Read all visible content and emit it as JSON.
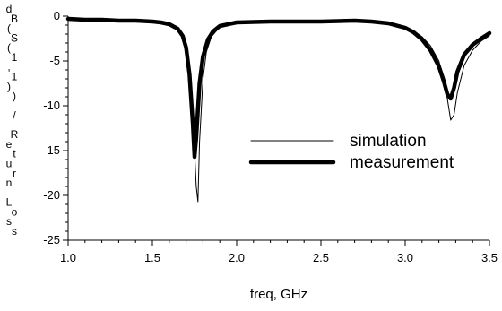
{
  "chart_data": {
    "type": "line",
    "title": "",
    "xlabel": "freq, GHz",
    "ylabel": "dB(S(1,1)) / Return Loss",
    "xlim": [
      1.0,
      3.5
    ],
    "ylim": [
      -25,
      0
    ],
    "xticks": [
      1.0,
      1.5,
      2.0,
      2.5,
      3.0,
      3.5
    ],
    "xtick_labels": [
      "1.0",
      "1.5",
      "2.0",
      "2.5",
      "3.0",
      "3.5"
    ],
    "yticks": [
      0,
      -5,
      -10,
      -15,
      -20,
      -25
    ],
    "ytick_labels": [
      "0",
      "-5",
      "-10",
      "-15",
      "-20",
      "-25"
    ],
    "grid": false,
    "legend_position": "center-right",
    "series": [
      {
        "name": "simulation",
        "line_width": "thin",
        "color": "#000000",
        "x": [
          1.0,
          1.1,
          1.2,
          1.3,
          1.4,
          1.5,
          1.55,
          1.6,
          1.65,
          1.68,
          1.7,
          1.72,
          1.74,
          1.76,
          1.77,
          1.78,
          1.8,
          1.82,
          1.85,
          1.9,
          2.0,
          2.2,
          2.5,
          2.7,
          2.8,
          2.9,
          3.0,
          3.05,
          3.1,
          3.15,
          3.2,
          3.23,
          3.25,
          3.27,
          3.29,
          3.31,
          3.35,
          3.4,
          3.45,
          3.5
        ],
        "y": [
          -0.3,
          -0.4,
          -0.4,
          -0.4,
          -0.5,
          -0.6,
          -0.7,
          -0.9,
          -1.3,
          -2.0,
          -3.0,
          -5.5,
          -11.0,
          -19.0,
          -20.7,
          -14.0,
          -7.0,
          -4.0,
          -2.3,
          -1.2,
          -0.7,
          -0.5,
          -0.5,
          -0.5,
          -0.6,
          -0.8,
          -1.2,
          -1.6,
          -2.3,
          -3.3,
          -5.0,
          -7.0,
          -9.2,
          -11.6,
          -11.0,
          -8.5,
          -5.5,
          -3.8,
          -2.8,
          -2.2
        ]
      },
      {
        "name": "measurement",
        "line_width": "thick",
        "color": "#000000",
        "x": [
          1.0,
          1.1,
          1.2,
          1.3,
          1.4,
          1.5,
          1.55,
          1.6,
          1.65,
          1.68,
          1.7,
          1.72,
          1.74,
          1.75,
          1.76,
          1.78,
          1.8,
          1.83,
          1.86,
          1.9,
          2.0,
          2.2,
          2.5,
          2.7,
          2.8,
          2.9,
          3.0,
          3.05,
          3.1,
          3.15,
          3.2,
          3.23,
          3.25,
          3.27,
          3.29,
          3.31,
          3.35,
          3.4,
          3.45,
          3.5
        ],
        "y": [
          -0.3,
          -0.4,
          -0.4,
          -0.5,
          -0.5,
          -0.6,
          -0.7,
          -0.9,
          -1.4,
          -2.2,
          -3.5,
          -6.5,
          -12.0,
          -15.7,
          -13.5,
          -7.5,
          -4.5,
          -2.6,
          -1.7,
          -1.1,
          -0.7,
          -0.6,
          -0.6,
          -0.5,
          -0.6,
          -0.8,
          -1.3,
          -1.8,
          -2.6,
          -3.8,
          -5.6,
          -7.3,
          -8.7,
          -9.2,
          -8.0,
          -6.2,
          -4.3,
          -3.2,
          -2.5,
          -1.9
        ]
      }
    ]
  }
}
